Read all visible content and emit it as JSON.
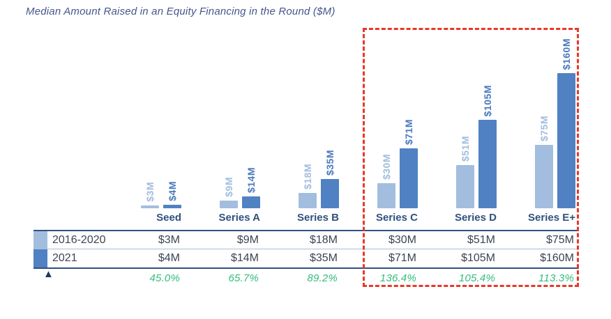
{
  "title": "Median Amount Raised in an Equity Financing in the Round ($M)",
  "chart_data": {
    "type": "bar",
    "categories": [
      "Seed",
      "Series A",
      "Series B",
      "Series C",
      "Series D",
      "Series E+"
    ],
    "series": [
      {
        "name": "2016-2020",
        "values": [
          3,
          9,
          18,
          30,
          51,
          75
        ],
        "labels": [
          "$3M",
          "$9M",
          "$18M",
          "$30M",
          "$51M",
          "$75M"
        ],
        "color": "#a3bddf"
      },
      {
        "name": "2021",
        "values": [
          4,
          14,
          35,
          71,
          105,
          160
        ],
        "labels": [
          "$4M",
          "$14M",
          "$35M",
          "$71M",
          "$105M",
          "$160M"
        ],
        "color": "#5081c3"
      }
    ],
    "unit": "$M",
    "ylim": [
      0,
      160
    ],
    "grid": false,
    "legend_position": "table-left",
    "value_label_rotation": 90,
    "highlight": {
      "categories": [
        "Series C",
        "Series D",
        "Series E+"
      ],
      "style": "red-dashed-box",
      "color": "#e8382a"
    }
  },
  "table": {
    "rows": [
      {
        "label": "2016-2020",
        "swatch_color": "#a3bddf",
        "values": [
          "$3M",
          "$9M",
          "$18M",
          "$30M",
          "$51M",
          "$75M"
        ]
      },
      {
        "label": "2021",
        "swatch_color": "#5081c3",
        "values": [
          "$4M",
          "$14M",
          "$35M",
          "$71M",
          "$105M",
          "$160M"
        ]
      }
    ],
    "change_row": {
      "icon": "▲",
      "icon_color": "#1f3864",
      "values": [
        "45.0%",
        "65.7%",
        "89.2%",
        "136.4%",
        "105.4%",
        "113.3%"
      ],
      "color": "#33bd7c"
    }
  },
  "colors": {
    "title": "#44568c",
    "category_label": "#30517f",
    "table_text": "#3c4454",
    "table_border": "#30517f",
    "table_separator": "#a9bdd6",
    "highlight_red": "#e8382a"
  }
}
